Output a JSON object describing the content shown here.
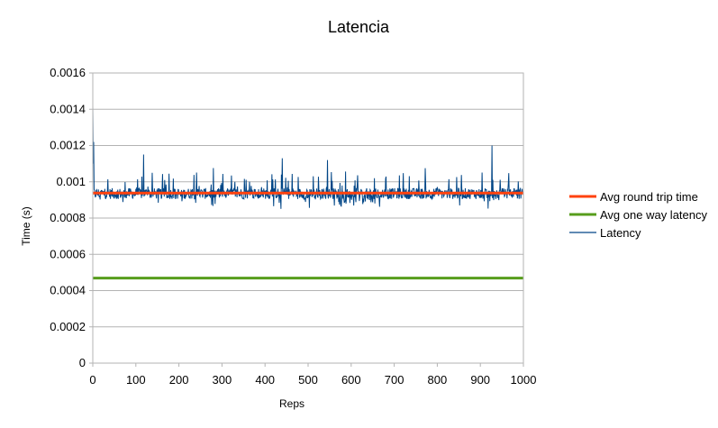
{
  "chart_data": {
    "type": "line",
    "title": "Latencia",
    "xlabel": "Reps",
    "ylabel": "Time (s)",
    "xlim": [
      0,
      1000
    ],
    "ylim": [
      0,
      0.0016
    ],
    "xticks": [
      "0",
      "100",
      "200",
      "300",
      "400",
      "500",
      "600",
      "700",
      "800",
      "900",
      "1000"
    ],
    "yticks": [
      "0",
      "0.0002",
      "0.0004",
      "0.0006",
      "0.0008",
      "0.001",
      "0.0012",
      "0.0014",
      "0.0016"
    ],
    "grid": "horizontal",
    "legend_position": "right",
    "series": [
      {
        "name": "Avg round trip time",
        "color": "#ff420e",
        "type": "constant",
        "value": 0.000938
      },
      {
        "name": "Avg one way latency",
        "color": "#579d1c",
        "type": "constant",
        "value": 0.000469
      },
      {
        "name": "Latency",
        "color": "#004586",
        "type": "noisy",
        "baseline": 0.000935,
        "min": 0.00085,
        "max": 0.00142,
        "spikes": [
          {
            "x": 0,
            "y": 0.00142
          },
          {
            "x": 2,
            "y": 0.00122
          },
          {
            "x": 118,
            "y": 0.00115
          },
          {
            "x": 440,
            "y": 0.00113
          },
          {
            "x": 545,
            "y": 0.00112
          },
          {
            "x": 927,
            "y": 0.0012
          }
        ]
      }
    ]
  }
}
